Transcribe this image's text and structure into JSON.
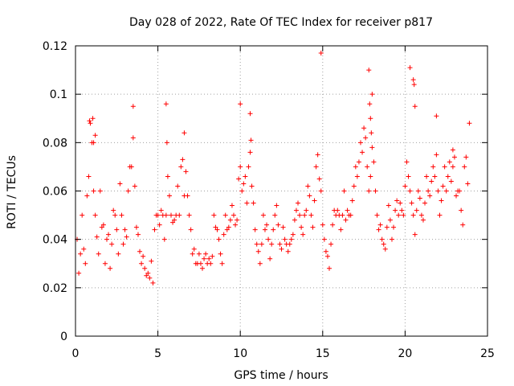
{
  "chart_data": {
    "type": "scatter",
    "title": "Day 028 of 2022, Rate Of TEC Index for receiver p817",
    "xlabel": "GPS time / hours",
    "ylabel": "ROTI / TECUs",
    "xlim": [
      0,
      25
    ],
    "ylim": [
      0,
      0.12
    ],
    "xticks": [
      "0",
      "5",
      "10",
      "15",
      "20",
      "25"
    ],
    "yticks": [
      "0",
      "0.02",
      "0.04",
      "0.06",
      "0.08",
      "0.1",
      "0.12"
    ],
    "xtick_values": [
      0,
      5,
      10,
      15,
      20,
      25
    ],
    "ytick_values": [
      0,
      0.02,
      0.04,
      0.06,
      0.08,
      0.1,
      0.12
    ],
    "grid": true,
    "marker": "+",
    "color": "#ff0000",
    "points_x": [
      0.1,
      0.2,
      0.3,
      0.4,
      0.5,
      0.6,
      0.7,
      0.8,
      0.9,
      1.0,
      1.1,
      1.2,
      1.3,
      1.4,
      1.5,
      1.6,
      1.7,
      1.8,
      1.9,
      2.0,
      2.1,
      2.2,
      2.3,
      2.4,
      2.5,
      2.6,
      2.7,
      2.8,
      2.9,
      3.0,
      3.1,
      3.2,
      3.3,
      3.4,
      3.5,
      3.6,
      3.7,
      3.8,
      3.9,
      4.0,
      4.1,
      4.2,
      4.3,
      4.4,
      4.5,
      4.6,
      4.7,
      4.8,
      4.9,
      5.0,
      5.1,
      5.2,
      5.3,
      5.4,
      5.5,
      5.6,
      5.7,
      5.8,
      5.9,
      6.0,
      6.1,
      6.2,
      6.3,
      6.4,
      6.5,
      6.6,
      6.7,
      6.8,
      6.9,
      7.0,
      7.1,
      7.2,
      7.3,
      7.4,
      7.5,
      7.6,
      7.7,
      7.8,
      7.9,
      8.0,
      8.1,
      8.2,
      8.3,
      8.4,
      8.5,
      8.6,
      8.7,
      8.8,
      8.9,
      9.0,
      9.1,
      9.2,
      9.3,
      9.4,
      9.5,
      9.6,
      9.7,
      9.8,
      9.9,
      10.0,
      10.1,
      10.2,
      10.3,
      10.4,
      10.5,
      10.6,
      10.7,
      10.8,
      10.9,
      11.0,
      11.1,
      11.2,
      11.3,
      11.4,
      11.5,
      11.6,
      11.7,
      11.8,
      11.9,
      12.0,
      12.1,
      12.2,
      12.3,
      12.4,
      12.5,
      12.6,
      12.7,
      12.8,
      12.9,
      13.0,
      13.1,
      13.2,
      13.3,
      13.4,
      13.5,
      13.6,
      13.7,
      13.8,
      13.9,
      14.0,
      14.1,
      14.2,
      14.3,
      14.4,
      14.5,
      14.6,
      14.7,
      14.8,
      14.9,
      15.0,
      15.1,
      15.2,
      15.3,
      15.4,
      15.5,
      15.6,
      15.7,
      15.8,
      15.9,
      16.0,
      16.1,
      16.2,
      16.3,
      16.4,
      16.5,
      16.6,
      16.7,
      16.8,
      16.9,
      17.0,
      17.1,
      17.2,
      17.3,
      17.4,
      17.5,
      17.6,
      17.7,
      17.8,
      17.9,
      18.0,
      18.1,
      18.2,
      18.3,
      18.4,
      18.5,
      18.6,
      18.7,
      18.8,
      18.9,
      19.0,
      19.1,
      19.2,
      19.3,
      19.4,
      19.5,
      19.6,
      19.7,
      19.8,
      19.9,
      20.0,
      20.1,
      20.2,
      20.3,
      20.4,
      20.5,
      20.6,
      20.7,
      20.8,
      20.9,
      21.0,
      21.1,
      21.2,
      21.3,
      21.4,
      21.5,
      21.6,
      21.7,
      21.8,
      21.9,
      22.0,
      22.1,
      22.2,
      22.3,
      22.4,
      22.5,
      22.6,
      22.7,
      22.8,
      22.9,
      23.0,
      23.1,
      23.2,
      23.3,
      23.4,
      23.5,
      23.6,
      23.7,
      23.8,
      23.9,
      0.85,
      1.05,
      1.1,
      1.2,
      3.5,
      5.5,
      5.55,
      6.6,
      10.0,
      10.6,
      10.65,
      14.9,
      17.8,
      17.85,
      17.9,
      17.95,
      18.0,
      20.3,
      20.5,
      20.55,
      20.6,
      21.9,
      22.9,
      23.8
    ],
    "points_y": [
      0.04,
      0.026,
      0.034,
      0.05,
      0.036,
      0.03,
      0.058,
      0.066,
      0.088,
      0.08,
      0.06,
      0.05,
      0.041,
      0.034,
      0.06,
      0.045,
      0.046,
      0.03,
      0.04,
      0.042,
      0.028,
      0.038,
      0.052,
      0.05,
      0.044,
      0.034,
      0.063,
      0.05,
      0.038,
      0.044,
      0.041,
      0.06,
      0.07,
      0.07,
      0.082,
      0.062,
      0.045,
      0.042,
      0.035,
      0.03,
      0.033,
      0.028,
      0.025,
      0.026,
      0.024,
      0.031,
      0.022,
      0.044,
      0.05,
      0.05,
      0.046,
      0.052,
      0.05,
      0.04,
      0.05,
      0.066,
      0.058,
      0.05,
      0.047,
      0.048,
      0.05,
      0.062,
      0.05,
      0.07,
      0.073,
      0.058,
      0.068,
      0.058,
      0.05,
      0.044,
      0.034,
      0.036,
      0.03,
      0.03,
      0.034,
      0.03,
      0.028,
      0.032,
      0.034,
      0.03,
      0.032,
      0.03,
      0.033,
      0.05,
      0.045,
      0.044,
      0.04,
      0.034,
      0.03,
      0.042,
      0.05,
      0.044,
      0.045,
      0.048,
      0.054,
      0.05,
      0.046,
      0.048,
      0.065,
      0.07,
      0.06,
      0.063,
      0.066,
      0.055,
      0.07,
      0.076,
      0.062,
      0.055,
      0.044,
      0.038,
      0.035,
      0.03,
      0.038,
      0.05,
      0.044,
      0.046,
      0.04,
      0.032,
      0.038,
      0.044,
      0.05,
      0.054,
      0.046,
      0.038,
      0.036,
      0.045,
      0.04,
      0.038,
      0.035,
      0.038,
      0.04,
      0.042,
      0.048,
      0.052,
      0.055,
      0.05,
      0.045,
      0.042,
      0.05,
      0.052,
      0.062,
      0.058,
      0.05,
      0.045,
      0.056,
      0.07,
      0.075,
      0.065,
      0.06,
      0.046,
      0.04,
      0.035,
      0.033,
      0.028,
      0.038,
      0.046,
      0.052,
      0.05,
      0.052,
      0.05,
      0.044,
      0.05,
      0.06,
      0.048,
      0.052,
      0.05,
      0.05,
      0.056,
      0.062,
      0.07,
      0.066,
      0.072,
      0.08,
      0.076,
      0.086,
      0.082,
      0.07,
      0.06,
      0.066,
      0.078,
      0.072,
      0.06,
      0.05,
      0.044,
      0.046,
      0.04,
      0.038,
      0.036,
      0.045,
      0.054,
      0.048,
      0.04,
      0.045,
      0.052,
      0.056,
      0.05,
      0.055,
      0.052,
      0.05,
      0.062,
      0.072,
      0.066,
      0.06,
      0.055,
      0.05,
      0.042,
      0.052,
      0.06,
      0.057,
      0.05,
      0.048,
      0.055,
      0.066,
      0.06,
      0.058,
      0.064,
      0.07,
      0.066,
      0.075,
      0.06,
      0.05,
      0.056,
      0.062,
      0.07,
      0.06,
      0.066,
      0.072,
      0.064,
      0.07,
      0.074,
      0.058,
      0.06,
      0.06,
      0.052,
      0.046,
      0.07,
      0.074,
      0.063,
      0.088,
      0.089,
      0.09,
      0.08,
      0.083,
      0.095,
      0.096,
      0.08,
      0.084,
      0.096,
      0.092,
      0.081,
      0.117,
      0.11,
      0.096,
      0.09,
      0.084,
      0.1,
      0.111,
      0.106,
      0.104,
      0.095,
      0.091,
      0.077
    ]
  }
}
